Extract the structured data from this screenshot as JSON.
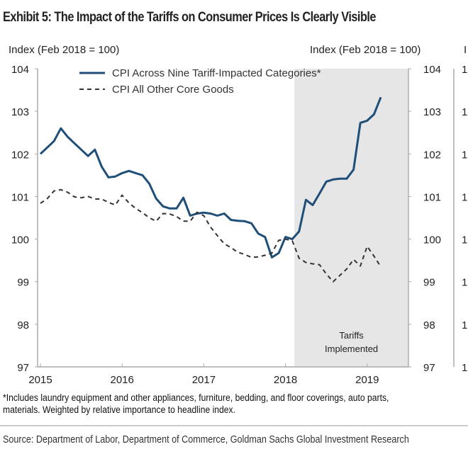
{
  "chart_data": {
    "type": "line",
    "title": "Exhibit 5: The Impact of the Tariffs on Consumer Prices Is Clearly Visible",
    "ylabel_left": "Index (Feb 2018 = 100)",
    "ylabel_right": "Index (Feb 2018 = 100)",
    "ylim": [
      97,
      104
    ],
    "yticks": [
      "97",
      "98",
      "99",
      "100",
      "101",
      "102",
      "103",
      "104"
    ],
    "xticks": [
      "2015",
      "2016",
      "2017",
      "2018",
      "2019"
    ],
    "x_start": "2015-01",
    "x_frequency": "monthly",
    "legend_position": "top",
    "grid": false,
    "shaded_region": {
      "start": "2018-02",
      "end": "2019-06",
      "label_line1": "Tariffs",
      "label_line2": "Implemented",
      "color": "#e6e6e6"
    },
    "series": [
      {
        "name": "CPI Across Nine Tariff-Impacted Categories*",
        "color": "#1f4e79",
        "style": "solid",
        "values": [
          102.0,
          102.15,
          102.3,
          102.6,
          102.4,
          102.25,
          102.1,
          101.95,
          102.1,
          101.7,
          101.45,
          101.47,
          101.55,
          101.6,
          101.55,
          101.5,
          101.3,
          100.95,
          100.77,
          100.72,
          100.72,
          100.97,
          100.55,
          100.6,
          100.62,
          100.6,
          100.55,
          100.6,
          100.45,
          100.43,
          100.42,
          100.37,
          100.13,
          100.05,
          99.57,
          99.67,
          100.05,
          100.0,
          100.18,
          100.92,
          100.8,
          101.07,
          101.35,
          101.4,
          101.42,
          101.42,
          101.63,
          102.73,
          102.78,
          102.93,
          103.33
        ]
      },
      {
        "name": "CPI All Other Core Goods",
        "color": "#333333",
        "style": "dashed",
        "values": [
          100.84,
          100.95,
          101.13,
          101.16,
          101.1,
          100.99,
          100.97,
          101.0,
          100.94,
          100.94,
          100.86,
          100.8,
          101.03,
          100.85,
          100.72,
          100.62,
          100.5,
          100.42,
          100.6,
          100.59,
          100.53,
          100.42,
          100.42,
          100.63,
          100.55,
          100.28,
          100.08,
          99.89,
          99.8,
          99.69,
          99.64,
          99.57,
          99.58,
          99.62,
          99.67,
          99.97,
          100.0,
          99.96,
          99.55,
          99.45,
          99.42,
          99.4,
          99.18,
          99.0,
          99.15,
          99.3,
          99.52,
          99.37,
          99.83,
          99.6,
          99.35
        ]
      }
    ]
  },
  "footnote_line1": "*Includes laundry equipment and other appliances, furniture, bedding, and floor coverings, auto parts,",
  "footnote_line2": "materials. Weighted by relative importance to headline index.",
  "source": "Source: Department of Labor, Department of Commerce, Goldman Sachs Global Investment Research",
  "clipped_axis_label": "I",
  "clipped_tick_label": "1("
}
